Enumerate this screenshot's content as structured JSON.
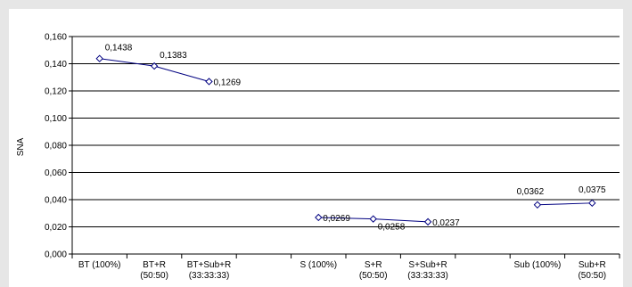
{
  "chart_data": {
    "type": "line",
    "title": "",
    "xlabel": "",
    "ylabel": "SNA",
    "ylim": [
      0,
      0.16
    ],
    "y_ticks": [
      "0,000",
      "0,020",
      "0,040",
      "0,060",
      "0,080",
      "0,100",
      "0,120",
      "0,140",
      "0,160"
    ],
    "y_tick_values": [
      0,
      0.02,
      0.04,
      0.06,
      0.08,
      0.1,
      0.12,
      0.14,
      0.16
    ],
    "categories": [
      [
        "BT (100%)"
      ],
      [
        "BT+R",
        "(50:50)"
      ],
      [
        "BT+Sub+R",
        "(33:33:33)"
      ],
      [
        ""
      ],
      [
        "S (100%)"
      ],
      [
        "S+R",
        "(50:50)"
      ],
      [
        "S+Sub+R",
        "(33:33:33)"
      ],
      [
        ""
      ],
      [
        "Sub (100%)"
      ],
      [
        "Sub+R",
        "(50:50)"
      ]
    ],
    "series": [
      {
        "name": "",
        "segments": [
          {
            "points": [
              {
                "cat": 0,
                "value": 0.1438,
                "label": "0,1438"
              },
              {
                "cat": 1,
                "value": 0.1383,
                "label": "0,1383"
              },
              {
                "cat": 2,
                "value": 0.1269,
                "label": "0,1269"
              }
            ]
          },
          {
            "points": [
              {
                "cat": 4,
                "value": 0.0269,
                "label": "0,0269"
              },
              {
                "cat": 5,
                "value": 0.0258,
                "label": "0,0258"
              },
              {
                "cat": 6,
                "value": 0.0237,
                "label": "0,0237"
              }
            ]
          },
          {
            "points": [
              {
                "cat": 8,
                "value": 0.0362,
                "label": "0,0362"
              },
              {
                "cat": 9,
                "value": 0.0375,
                "label": "0,0375"
              }
            ]
          }
        ]
      }
    ],
    "grid": true,
    "legend": "none",
    "colors": {
      "line": "#000080",
      "marker_fill": "#ffffff",
      "marker_stroke": "#000080",
      "grid": "#000000",
      "background": "#ffffff",
      "frame": "#e6e6e6"
    }
  }
}
